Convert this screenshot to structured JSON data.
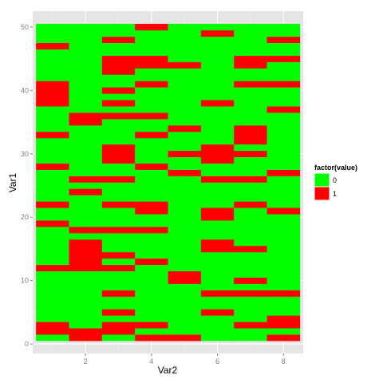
{
  "chart_data": {
    "type": "heatmap",
    "xlabel": "Var2",
    "ylabel": "Var1",
    "x_ticks": [
      2,
      4,
      6,
      8
    ],
    "y_ticks": [
      0,
      10,
      20,
      30,
      40,
      50
    ],
    "x_tick_labels": [
      "2",
      "4",
      "6",
      "8"
    ],
    "y_tick_labels": [
      "0",
      "10",
      "20",
      "30",
      "40",
      "50"
    ],
    "xlim": [
      0.4,
      8.6
    ],
    "ylim": [
      -1.5,
      52.5
    ],
    "x_values": [
      1,
      2,
      3,
      4,
      5,
      6,
      7,
      8
    ],
    "y_values": [
      1,
      50
    ],
    "legend": {
      "title": "factor(value)",
      "position": "right",
      "items": [
        {
          "label": "0",
          "color": "#00ff00"
        },
        {
          "label": "1",
          "color": "#ff0000"
        }
      ]
    },
    "colors": {
      "0": "#00ff00",
      "1": "#ff0000"
    },
    "grid": true,
    "panel_background": "#e5e5e5",
    "cells_equal_1": {
      "1": [
        2,
        3,
        12,
        19,
        22,
        28,
        33,
        38,
        39,
        40,
        41,
        47
      ],
      "2": [
        1,
        2,
        12,
        13,
        14,
        15,
        16,
        18,
        24,
        26,
        35,
        36
      ],
      "3": [
        2,
        3,
        5,
        8,
        12,
        14,
        18,
        22,
        26,
        29,
        30,
        31,
        36,
        38,
        40,
        43,
        44,
        45,
        48
      ],
      "4": [
        1,
        3,
        13,
        18,
        21,
        22,
        28,
        33,
        36,
        41,
        44,
        45,
        50
      ],
      "5": [
        1,
        10,
        11,
        27,
        30,
        34,
        44
      ],
      "6": [
        5,
        8,
        15,
        16,
        20,
        21,
        26,
        29,
        30,
        31,
        38,
        49
      ],
      "7": [
        3,
        8,
        10,
        15,
        22,
        26,
        30,
        32,
        33,
        34,
        41,
        44,
        45
      ],
      "8": [
        1,
        3,
        4,
        8,
        21,
        27,
        37,
        41,
        45,
        48
      ]
    }
  }
}
